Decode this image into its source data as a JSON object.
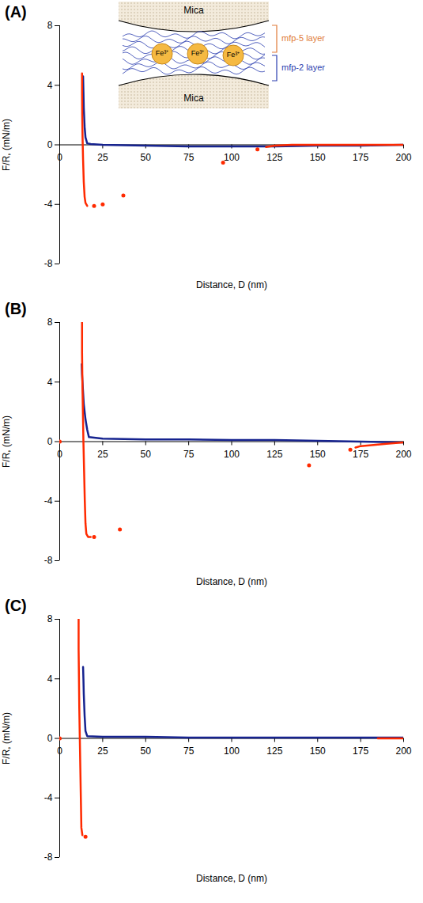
{
  "chart_data": [
    {
      "type": "line",
      "title": "(A)",
      "x_label": "Distance, D (nm)",
      "y_label": "F/R, (mN/m)",
      "xlim": [
        0,
        200
      ],
      "ylim": [
        -8,
        8
      ],
      "xticks": [
        0,
        25,
        50,
        75,
        100,
        125,
        150,
        175,
        200
      ],
      "yticks": [
        -8,
        -4,
        0,
        4,
        8
      ],
      "annotations": {
        "inset": {
          "top": "Mica",
          "bottom": "Mica",
          "upper_layer": "mfp-5 layer",
          "lower_layer": "mfp-2 layer",
          "ions": [
            "Fe³⁺",
            "Fe³⁺",
            "Fe³⁺"
          ]
        }
      },
      "series": [
        {
          "type": "line",
          "color": "#16238f",
          "line_style": "solid",
          "x": [
            200,
            175,
            150,
            125,
            100,
            75,
            50,
            25,
            18,
            16,
            15,
            14.5,
            14,
            13.8,
            13.6
          ],
          "values": [
            0,
            -0.05,
            -0.05,
            -0.1,
            -0.1,
            -0.1,
            -0.05,
            0,
            0.05,
            0.1,
            0.5,
            1.2,
            2.5,
            3.6,
            4.6
          ]
        },
        {
          "type": "line",
          "color": "#ff2a00",
          "line_style": "solid",
          "x": [
            13,
            13,
            13.1,
            13.3,
            13.6,
            14,
            14.5,
            15,
            16
          ],
          "values": [
            4.8,
            3.5,
            2,
            0.5,
            -1,
            -2.5,
            -3.5,
            -3.9,
            -4.1
          ]
        },
        {
          "type": "line",
          "color": "#ff2a00",
          "line_style": "solid",
          "x": [
            120,
            125,
            135,
            150,
            175,
            200
          ],
          "values": [
            -0.15,
            -0.05,
            0,
            0,
            0,
            0
          ]
        },
        {
          "type": "scatter",
          "color": "#ff2a00",
          "marker": "circle",
          "x": [
            20,
            25,
            37,
            95,
            115
          ],
          "values": [
            -4.1,
            -4,
            -3.4,
            -1.2,
            -0.3
          ]
        }
      ]
    },
    {
      "type": "line",
      "title": "(B)",
      "x_label": "Distance, D (nm)",
      "y_label": "F/R, (mN/m)",
      "xlim": [
        0,
        200
      ],
      "ylim": [
        -8,
        8
      ],
      "xticks": [
        0,
        25,
        50,
        75,
        100,
        125,
        150,
        175,
        200
      ],
      "yticks": [
        -8,
        -4,
        0,
        4,
        8
      ],
      "series": [
        {
          "type": "line",
          "color": "#16238f",
          "line_style": "solid",
          "x": [
            200,
            175,
            150,
            125,
            100,
            75,
            50,
            25,
            17,
            16,
            15,
            14,
            13.5,
            13,
            12.8
          ],
          "values": [
            -0.05,
            0,
            0.05,
            0.1,
            0.1,
            0.15,
            0.15,
            0.2,
            0.3,
            0.8,
            1.5,
            2.5,
            3.5,
            4.5,
            5.2
          ]
        },
        {
          "type": "line",
          "color": "#ff2a00",
          "line_style": "solid",
          "x": [
            13,
            13,
            13.2,
            13.5,
            13.8,
            14.2,
            14.6,
            15,
            15.5,
            16.5,
            18
          ],
          "values": [
            8,
            6,
            4,
            2,
            0,
            -2,
            -4,
            -5.5,
            -6.2,
            -6.4,
            -6.4
          ]
        },
        {
          "type": "line",
          "color": "#ff2a00",
          "line_style": "solid",
          "x": [
            172,
            175,
            180,
            190,
            200
          ],
          "values": [
            -0.4,
            -0.3,
            -0.25,
            -0.15,
            -0.05
          ]
        },
        {
          "type": "scatter",
          "color": "#ff2a00",
          "marker": "circle",
          "x": [
            0,
            20,
            35,
            145,
            169
          ],
          "values": [
            0,
            -6.4,
            -5.9,
            -1.6,
            -0.55
          ]
        }
      ]
    },
    {
      "type": "line",
      "title": "(C)",
      "x_label": "Distance, D (nm)",
      "y_label": "F/R, (mN/m)",
      "xlim": [
        0,
        200
      ],
      "ylim": [
        -8,
        8
      ],
      "xticks": [
        0,
        25,
        50,
        75,
        100,
        125,
        150,
        175,
        200
      ],
      "yticks": [
        -8,
        -4,
        0,
        4,
        8
      ],
      "series": [
        {
          "type": "line",
          "color": "#16238f",
          "line_style": "solid",
          "x": [
            200,
            175,
            150,
            125,
            100,
            75,
            50,
            25,
            16,
            15,
            14.5,
            14,
            13.8,
            13.6
          ],
          "values": [
            0.05,
            0.05,
            0.05,
            0.05,
            0.05,
            0.05,
            0.1,
            0.1,
            0.15,
            0.5,
            1.5,
            3,
            4,
            4.8
          ]
        },
        {
          "type": "line",
          "color": "#ff2a00",
          "line_style": "solid",
          "x": [
            11,
            11,
            11.2,
            11.4,
            11.7,
            12,
            12.3,
            12.6,
            13.2
          ],
          "values": [
            8,
            6,
            4,
            2,
            0,
            -2,
            -4,
            -6,
            -6.5
          ]
        },
        {
          "type": "line",
          "color": "#ff2a00",
          "line_style": "solid",
          "x": [
            185,
            190,
            200
          ],
          "values": [
            0,
            0,
            0
          ]
        },
        {
          "type": "scatter",
          "color": "#ff2a00",
          "marker": "circle",
          "x": [
            0,
            15
          ],
          "values": [
            0,
            -6.6
          ]
        }
      ]
    }
  ]
}
